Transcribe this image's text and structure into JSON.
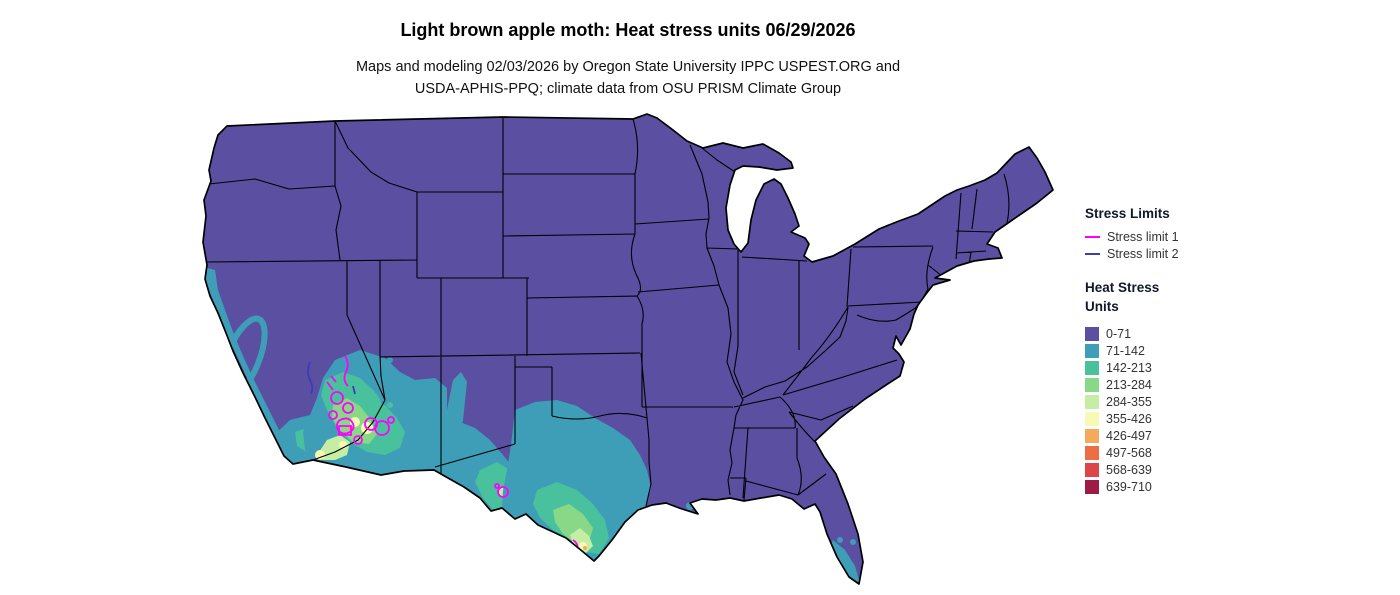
{
  "title": "Light brown apple moth: Heat stress units 06/29/2026",
  "subtitle_lines": [
    "Maps and modeling 02/03/2026 by Oregon State University IPPC USPEST.ORG and",
    "USDA-APHIS-PPQ; climate data from OSU PRISM Climate Group"
  ],
  "legend": {
    "stress_limits": {
      "title": "Stress Limits",
      "items": [
        {
          "label": "Stress limit 1",
          "color": "#ff00ff"
        },
        {
          "label": "Stress limit 2",
          "color": "#3c3cb4"
        }
      ]
    },
    "heat_stress_units": {
      "title_lines": [
        "Heat Stress",
        "Units"
      ],
      "bins": [
        {
          "label": "0-71",
          "color": "#5b4fa2"
        },
        {
          "label": "71-142",
          "color": "#3e9eb8"
        },
        {
          "label": "142-213",
          "color": "#48c19c"
        },
        {
          "label": "213-284",
          "color": "#88d888"
        },
        {
          "label": "284-355",
          "color": "#c5eda3"
        },
        {
          "label": "355-426",
          "color": "#f6fab4"
        },
        {
          "label": "426-497",
          "color": "#f4a95b"
        },
        {
          "label": "497-568",
          "color": "#ed6d45"
        },
        {
          "label": "568-639",
          "color": "#dc4646"
        },
        {
          "label": "639-710",
          "color": "#9e1b46"
        }
      ]
    }
  },
  "map": {
    "region": "Contiguous United States",
    "colors": {
      "base": "#5b4fa2",
      "teal": "#3e9eb8",
      "green": "#48c19c",
      "light_green": "#88d888",
      "pale": "#c5eda3",
      "yellow": "#f6fab4",
      "orange": "#f4a95b",
      "stress1": "#ff00ff",
      "stress2": "#3c3cb4",
      "border": "#000000",
      "background": "#ffffff"
    }
  }
}
